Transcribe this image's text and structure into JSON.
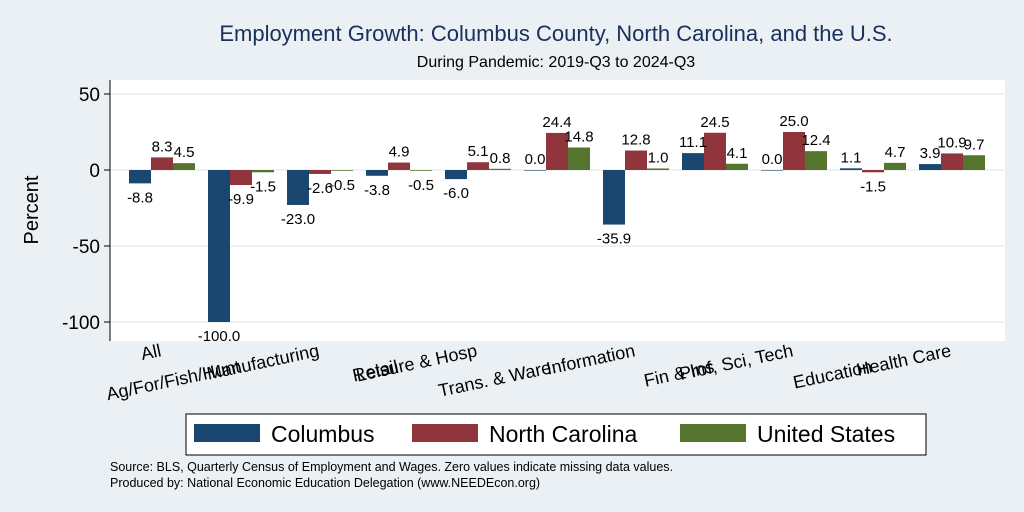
{
  "chart_data": {
    "type": "bar",
    "title": "Employment Growth: Columbus County, North Carolina, and the U.S.",
    "subtitle": "During Pandemic: 2019-Q3 to 2024-Q3",
    "ylabel": "Percent",
    "ylim": [
      -110,
      55
    ],
    "yticks": [
      50,
      0,
      -50,
      -100
    ],
    "grid": true,
    "legend_position": "bottom",
    "categories": [
      "All",
      "Ag/For/Fish/Hunt",
      "Manufacturing",
      "Retail",
      "Leisure & Hosp",
      "Trans. & Ware.",
      "Information",
      "Fin & Ins",
      "Prof, Sci, Tech",
      "Education",
      "Health Care"
    ],
    "series": [
      {
        "name": "Columbus",
        "color": "#1a476f",
        "values": [
          -8.8,
          -100.0,
          -23.0,
          -3.8,
          -6.0,
          0.0,
          -35.9,
          11.1,
          0.0,
          1.1,
          3.9
        ]
      },
      {
        "name": "North Carolina",
        "color": "#90353b",
        "values": [
          8.3,
          -9.9,
          -2.6,
          4.9,
          5.1,
          24.4,
          12.8,
          24.5,
          25.0,
          -1.5,
          10.9
        ]
      },
      {
        "name": "United States",
        "color": "#55752f",
        "values": [
          4.5,
          -1.5,
          -0.5,
          -0.5,
          0.8,
          14.8,
          1.0,
          4.1,
          12.4,
          4.7,
          9.7
        ]
      }
    ],
    "footnotes": [
      "Source: BLS, Quarterly Census of Employment and Wages. Zero values indicate missing data values.",
      "Produced by: National Economic Education Delegation (www.NEEDEcon.org)"
    ]
  }
}
